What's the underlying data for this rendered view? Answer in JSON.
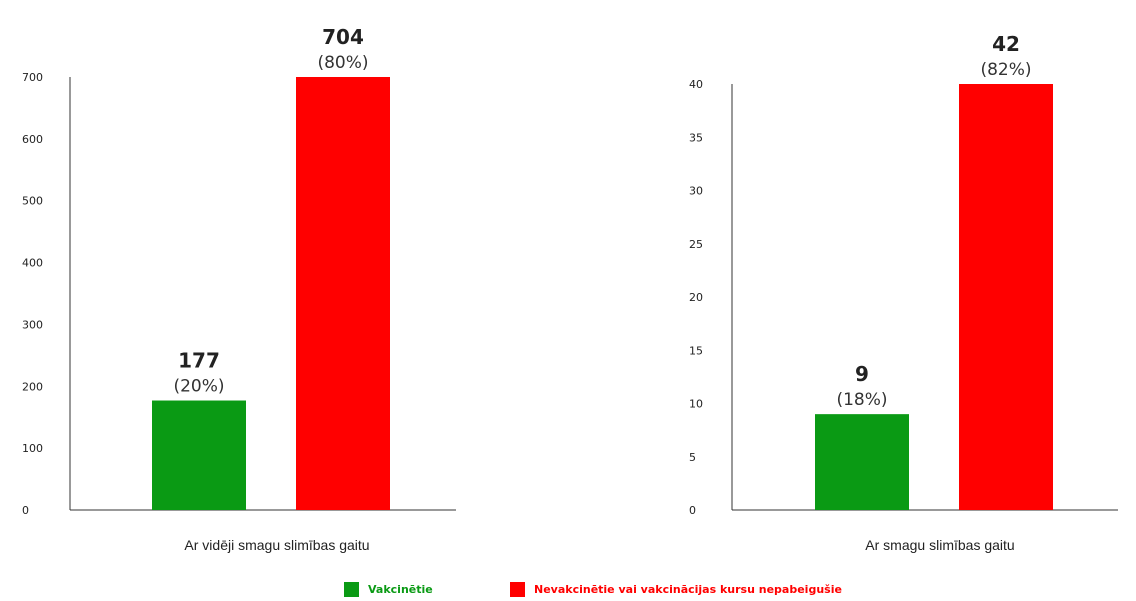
{
  "chart_data": [
    {
      "type": "bar",
      "categories": [
        "Ar vidēji smagu slimības gaitu"
      ],
      "series": [
        {
          "name": "Vakcinētie",
          "values": [
            177
          ],
          "percent_labels": [
            "(20%)"
          ],
          "color": "#0a9a14"
        },
        {
          "name": "Nevakcinētie vai vakcinācijas kursu nepabeigušie",
          "values": [
            704
          ],
          "percent_labels": [
            "(80%)"
          ],
          "color": "#ff0000"
        }
      ],
      "ylim": [
        0,
        700
      ],
      "yticks": [
        0,
        100,
        200,
        300,
        400,
        500,
        600,
        700
      ],
      "grid": false
    },
    {
      "type": "bar",
      "categories": [
        "Ar smagu slimības gaitu"
      ],
      "series": [
        {
          "name": "Vakcinētie",
          "values": [
            9
          ],
          "percent_labels": [
            "(18%)"
          ],
          "color": "#0a9a14"
        },
        {
          "name": "Nevakcinētie vai vakcinācijas kursu nepabeigušie",
          "values": [
            42
          ],
          "percent_labels": [
            "(82%)"
          ],
          "color": "#ff0000"
        }
      ],
      "ylim": [
        0,
        40
      ],
      "yticks": [
        0,
        5,
        10,
        15,
        20,
        25,
        30,
        35,
        40
      ],
      "grid": false
    }
  ],
  "legend": {
    "placement": "bottom-center",
    "items": [
      {
        "label": "Vakcinētie",
        "color": "#0a9a14"
      },
      {
        "label": "Nevakcinētie vai vakcinācijas kursu nepabeigušie",
        "color": "#ff0000"
      }
    ]
  }
}
